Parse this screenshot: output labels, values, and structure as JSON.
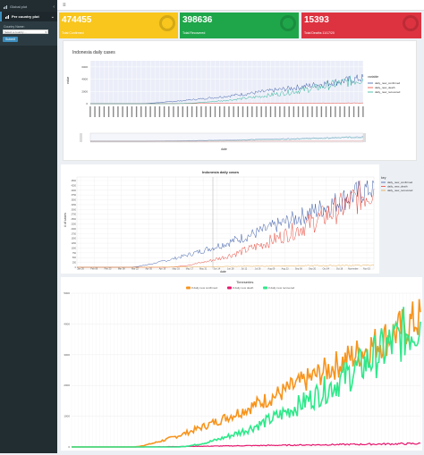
{
  "sidebar": {
    "items": [
      {
        "label": "Global plot",
        "icon": "chart-icon"
      },
      {
        "label": "Per country plot",
        "icon": "chart-icon"
      }
    ],
    "country_label": "Country Name:",
    "select_value": "Select a country ...",
    "submit_label": "Submit"
  },
  "value_boxes": [
    {
      "value": "474455",
      "label": "Total Confirmed",
      "color": "#f8c61c"
    },
    {
      "value": "398636",
      "label": "Total Recovered",
      "color": "#1fa64a"
    },
    {
      "value": "15393",
      "label": "Total Deaths 11/17/20",
      "color": "#dd3340"
    }
  ],
  "chart_data": [
    {
      "type": "line",
      "title": "Indonesia daily cases",
      "xlabel": "date",
      "ylabel": "value",
      "yticks": [
        "0",
        "2000",
        "4000",
        "6000"
      ],
      "legend_title": "variable",
      "series": [
        {
          "name": "daily_new_confirmed",
          "color": "#3b5ba9"
        },
        {
          "name": "daily_new_death",
          "color": "#e8473a"
        },
        {
          "name": "daily_new_recovered",
          "color": "#2ab29a"
        }
      ]
    },
    {
      "type": "line",
      "title": "Indonesia daily cases",
      "xlabel": "date",
      "ylabel": "# of cases",
      "legend_title": "key",
      "xticks": [
        "Jan 26",
        "Feb 09",
        "Feb 23",
        "Mar 08",
        "Mar 22",
        "Apr 05",
        "Apr 19",
        "May 03",
        "May 17",
        "May 31",
        "Jun 14",
        "Jun 28",
        "Jul 12",
        "Jul 26",
        "Aug 09",
        "Aug 23",
        "Sep 06",
        "Sep 20",
        "Oct 04",
        "Oct 18",
        "November",
        "Nov 15"
      ],
      "yticks": [
        "0",
        "250",
        "500",
        "750",
        "1000",
        "1250",
        "1500",
        "1750",
        "2000",
        "2250",
        "2500",
        "2750",
        "3000",
        "3250",
        "3500",
        "3750",
        "4000",
        "4250",
        "4500"
      ],
      "series": [
        {
          "name": "daily_new_confirmed",
          "color": "#3b5ba9"
        },
        {
          "name": "daily_new_death",
          "color": "#e8473a"
        },
        {
          "name": "daily_new_recovered",
          "color": "#e6a23c"
        }
      ]
    },
    {
      "type": "line",
      "title": "Timeseries",
      "yticks": [
        "0",
        "1000",
        "2000",
        "3000",
        "4000",
        "5000"
      ],
      "ylim": [
        0,
        5000
      ],
      "series": [
        {
          "name": "# daily new confirmed",
          "color": "#f7941d"
        },
        {
          "name": "# daily new death",
          "color": "#e6176e"
        },
        {
          "name": "# daily new recovered",
          "color": "#2ee88a"
        }
      ]
    }
  ]
}
